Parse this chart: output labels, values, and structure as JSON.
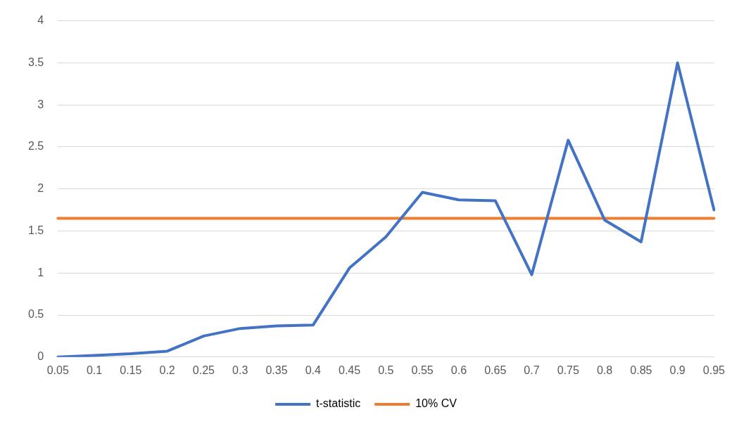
{
  "chart_data": {
    "type": "line",
    "categories": [
      "0.05",
      "0.1",
      "0.15",
      "0.2",
      "0.25",
      "0.3",
      "0.35",
      "0.4",
      "0.45",
      "0.5",
      "0.55",
      "0.6",
      "0.65",
      "0.7",
      "0.75",
      "0.8",
      "0.85",
      "0.9",
      "0.95"
    ],
    "series": [
      {
        "name": "t-statistic",
        "color": "#4472c4",
        "values": [
          0,
          0.02,
          0.04,
          0.07,
          0.25,
          0.34,
          0.37,
          0.38,
          1.06,
          1.43,
          1.96,
          1.87,
          1.86,
          0.98,
          2.58,
          1.63,
          1.37,
          3.5,
          1.75
        ]
      },
      {
        "name": "10% CV",
        "color": "#ed7d31",
        "values": [
          1.65,
          1.65,
          1.65,
          1.65,
          1.65,
          1.65,
          1.65,
          1.65,
          1.65,
          1.65,
          1.65,
          1.65,
          1.65,
          1.65,
          1.65,
          1.65,
          1.65,
          1.65,
          1.65
        ]
      }
    ],
    "ylim": [
      0,
      4
    ],
    "yticks": [
      0,
      0.5,
      1,
      1.5,
      2,
      2.5,
      3,
      3.5,
      4
    ],
    "grid": "y",
    "legend": "bottom",
    "marker": "none",
    "line_style": "solid"
  }
}
